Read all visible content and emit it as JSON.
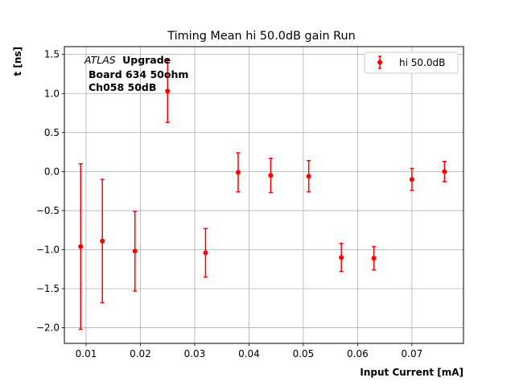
{
  "chart_data": {
    "type": "scatter",
    "title": "Timing Mean hi 50.0dB gain Run",
    "xlabel": "Input Current [mA]",
    "ylabel": "t [ns]",
    "xlim": [
      0.006,
      0.0795
    ],
    "ylim": [
      -2.2,
      1.6
    ],
    "xticks": [
      0.01,
      0.02,
      0.03,
      0.04,
      0.05,
      0.06,
      0.07
    ],
    "xtick_labels": [
      "0.01",
      "0.02",
      "0.03",
      "0.04",
      "0.05",
      "0.06",
      "0.07"
    ],
    "yticks": [
      -2.0,
      -1.5,
      -1.0,
      -0.5,
      0.0,
      0.5,
      1.0,
      1.5
    ],
    "ytick_labels": [
      "−2.0",
      "−1.5",
      "−1.0",
      "−0.5",
      "0.0",
      "0.5",
      "1.0",
      "1.5"
    ],
    "grid": true,
    "legend_position": "top-right",
    "annotation": {
      "experiment_italic": "ATLAS",
      "experiment_bold": "Upgrade",
      "line2": "Board 634 50ohm",
      "line3": "Ch058 50dB"
    },
    "series": [
      {
        "name": "hi 50.0dB",
        "color": "#ff0000",
        "points": [
          {
            "x": 0.009,
            "y": -0.96,
            "yerr_low": 1.06,
            "yerr_high": 1.06
          },
          {
            "x": 0.013,
            "y": -0.89,
            "yerr_low": 0.79,
            "yerr_high": 0.79
          },
          {
            "x": 0.019,
            "y": -1.02,
            "yerr_low": 0.51,
            "yerr_high": 0.51
          },
          {
            "x": 0.025,
            "y": 1.03,
            "yerr_low": 0.4,
            "yerr_high": 0.4
          },
          {
            "x": 0.032,
            "y": -1.04,
            "yerr_low": 0.31,
            "yerr_high": 0.31
          },
          {
            "x": 0.038,
            "y": -0.01,
            "yerr_low": 0.25,
            "yerr_high": 0.25
          },
          {
            "x": 0.044,
            "y": -0.05,
            "yerr_low": 0.22,
            "yerr_high": 0.22
          },
          {
            "x": 0.051,
            "y": -0.06,
            "yerr_low": 0.2,
            "yerr_high": 0.2
          },
          {
            "x": 0.057,
            "y": -1.1,
            "yerr_low": 0.18,
            "yerr_high": 0.18
          },
          {
            "x": 0.063,
            "y": -1.11,
            "yerr_low": 0.15,
            "yerr_high": 0.15
          },
          {
            "x": 0.07,
            "y": -0.1,
            "yerr_low": 0.14,
            "yerr_high": 0.14
          },
          {
            "x": 0.076,
            "y": 0.0,
            "yerr_low": 0.13,
            "yerr_high": 0.13
          }
        ]
      }
    ]
  }
}
